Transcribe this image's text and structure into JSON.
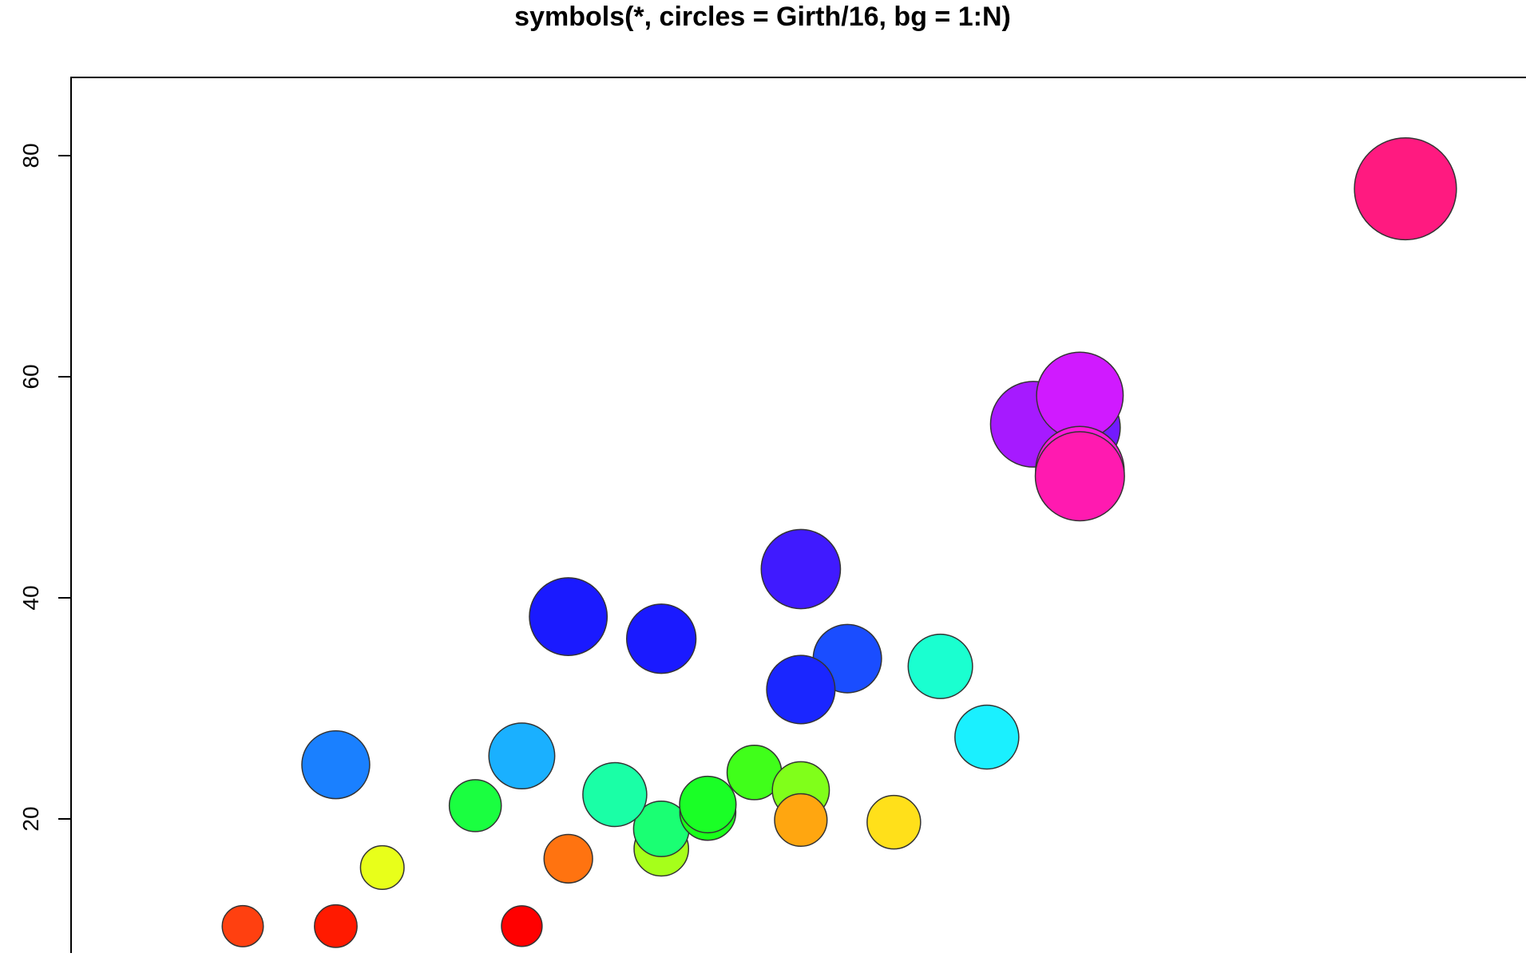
{
  "chart_data": {
    "type": "scatter",
    "title": "symbols(*, circles = Girth/16, bg = 1:N)",
    "xlabel": "",
    "ylabel": "",
    "ylim": [
      7.5,
      86
    ],
    "y_ticks": [
      20,
      40,
      60,
      80
    ],
    "grid": false,
    "legend": "none",
    "x_scale_note": "x axis not visible; x values are relative positions",
    "points": [
      {
        "x": 1.8,
        "y": 10.3,
        "girth": 8.3,
        "color": "#FF4010"
      },
      {
        "x": 2.0,
        "y": 10.3,
        "girth": 8.6,
        "color": "#FF1A00"
      },
      {
        "x": 2.1,
        "y": 15.6,
        "girth": 8.8,
        "color": "#E8FF1A"
      },
      {
        "x": 2.3,
        "y": 21.2,
        "girth": 10.5,
        "color": "#1AFF40"
      },
      {
        "x": 2.4,
        "y": 10.3,
        "girth": 8.2,
        "color": "#FF0000"
      },
      {
        "x": 2.5,
        "y": 16.4,
        "girth": 9.8,
        "color": "#FF7310"
      },
      {
        "x": 2.7,
        "y": 17.3,
        "girth": 11.0,
        "color": "#A6FF1A"
      },
      {
        "x": 2.7,
        "y": 19.1,
        "girth": 11.2,
        "color": "#1AFF73"
      },
      {
        "x": 2.8,
        "y": 20.6,
        "girth": 11.3,
        "color": "#1AFF1A"
      },
      {
        "x": 2.8,
        "y": 21.3,
        "girth": 11.4,
        "color": "#1AFF26"
      },
      {
        "x": 2.9,
        "y": 24.2,
        "girth": 11.0,
        "color": "#40FF1A"
      },
      {
        "x": 3.0,
        "y": 22.6,
        "girth": 11.5,
        "color": "#80FF1A"
      },
      {
        "x": 3.0,
        "y": 19.9,
        "girth": 10.6,
        "color": "#FFA610"
      },
      {
        "x": 3.2,
        "y": 19.7,
        "girth": 10.8,
        "color": "#FFE01A"
      },
      {
        "x": 3.4,
        "y": 27.4,
        "girth": 12.9,
        "color": "#1AF0FF"
      },
      {
        "x": 3.3,
        "y": 33.8,
        "girth": 13.0,
        "color": "#1AFFD0"
      },
      {
        "x": 2.6,
        "y": 22.2,
        "girth": 12.9,
        "color": "#1AFFA6"
      },
      {
        "x": 2.4,
        "y": 25.7,
        "girth": 13.3,
        "color": "#1AB0FF"
      },
      {
        "x": 2.0,
        "y": 24.9,
        "girth": 13.7,
        "color": "#1A80FF"
      },
      {
        "x": 2.5,
        "y": 38.3,
        "girth": 15.7,
        "color": "#1A1AFF"
      },
      {
        "x": 2.7,
        "y": 36.3,
        "girth": 14.0,
        "color": "#1A1AFF"
      },
      {
        "x": 3.1,
        "y": 34.5,
        "girth": 13.8,
        "color": "#1A4DFF"
      },
      {
        "x": 3.0,
        "y": 31.7,
        "girth": 13.8,
        "color": "#1A26FF"
      },
      {
        "x": 3.0,
        "y": 42.6,
        "girth": 16.0,
        "color": "#401AFF"
      },
      {
        "x": 3.6,
        "y": 55.4,
        "girth": 16.3,
        "color": "#731AFF"
      },
      {
        "x": 3.5,
        "y": 55.7,
        "girth": 17.3,
        "color": "#A61AFF"
      },
      {
        "x": 3.6,
        "y": 58.3,
        "girth": 17.5,
        "color": "#D01AFF"
      },
      {
        "x": 3.6,
        "y": 51.5,
        "girth": 17.9,
        "color": "#FF1AD9"
      },
      {
        "x": 3.6,
        "y": 51.0,
        "girth": 18.0,
        "color": "#FF1AB0"
      },
      {
        "x": 4.3,
        "y": 77.0,
        "girth": 20.6,
        "color": "#FF1A80"
      }
    ]
  }
}
